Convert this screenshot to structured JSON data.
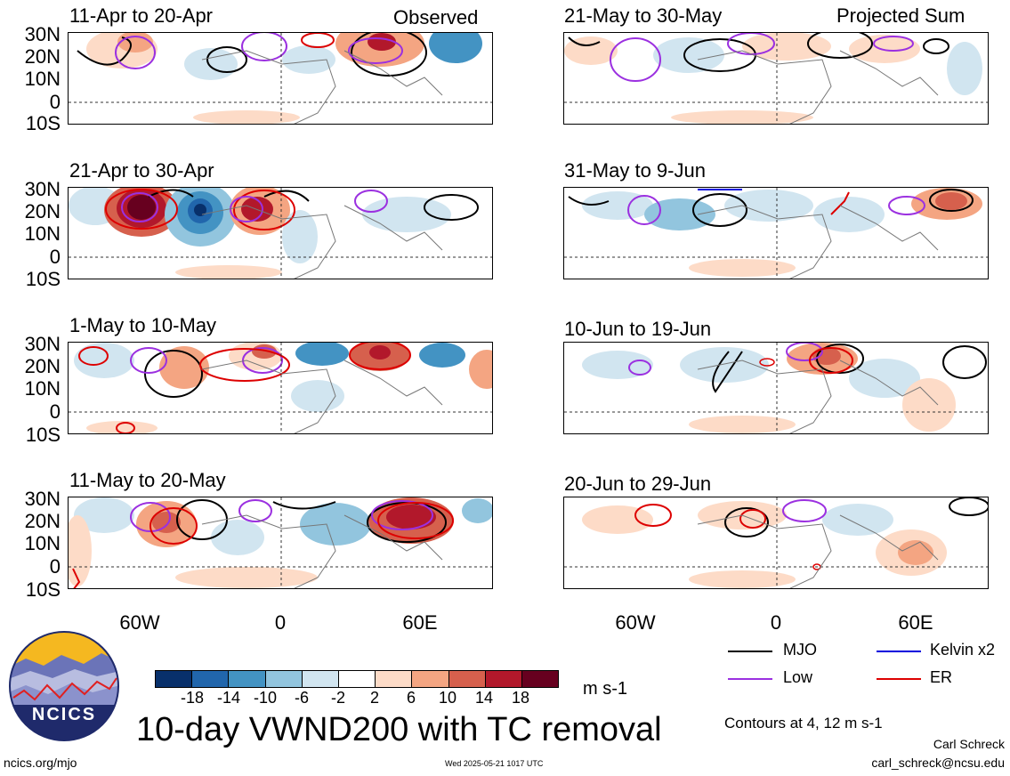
{
  "panels": {
    "left": [
      {
        "title": "11-Apr to 20-Apr",
        "tag": "Observed"
      },
      {
        "title": "21-Apr to 30-Apr",
        "tag": ""
      },
      {
        "title": "1-May to 10-May",
        "tag": ""
      },
      {
        "title": "11-May to 20-May",
        "tag": ""
      }
    ],
    "right": [
      {
        "title": "21-May to 30-May",
        "tag": "Projected Sum"
      },
      {
        "title": "31-May to 9-Jun",
        "tag": ""
      },
      {
        "title": "10-Jun to 19-Jun",
        "tag": ""
      },
      {
        "title": "20-Jun to 29-Jun",
        "tag": ""
      }
    ]
  },
  "axes": {
    "lat_labels": [
      "30N",
      "20N",
      "10N",
      "0",
      "10S"
    ],
    "lon_labels": [
      "60W",
      "0",
      "60E"
    ]
  },
  "colorbar": {
    "ticks": [
      "-18",
      "-14",
      "-10",
      "-6",
      "-2",
      "2",
      "6",
      "10",
      "14",
      "18"
    ],
    "colors": [
      "#08306b",
      "#2166ac",
      "#4393c3",
      "#92c5de",
      "#d1e5f0",
      "#ffffff",
      "#fddbc7",
      "#f4a582",
      "#d6604d",
      "#b2182b",
      "#67001f"
    ],
    "units": "m s-1"
  },
  "legend": {
    "mjo": "MJO",
    "kelvin": "Kelvin x2",
    "low": "Low",
    "er": "ER",
    "colors": {
      "mjo": "#000000",
      "kelvin": "#0000dd",
      "low": "#9b30e0",
      "er": "#dd0000"
    }
  },
  "title": "10-day VWND200 with TC removal",
  "contours_note": "Contours at 4, 12 m s-1",
  "author": "Carl Schreck",
  "email": "carl_schreck@ncsu.edu",
  "url": "ncics.org/mjo",
  "timestamp": "Wed 2025-05-21 1017 UTC",
  "logo_text": "NCICS"
}
